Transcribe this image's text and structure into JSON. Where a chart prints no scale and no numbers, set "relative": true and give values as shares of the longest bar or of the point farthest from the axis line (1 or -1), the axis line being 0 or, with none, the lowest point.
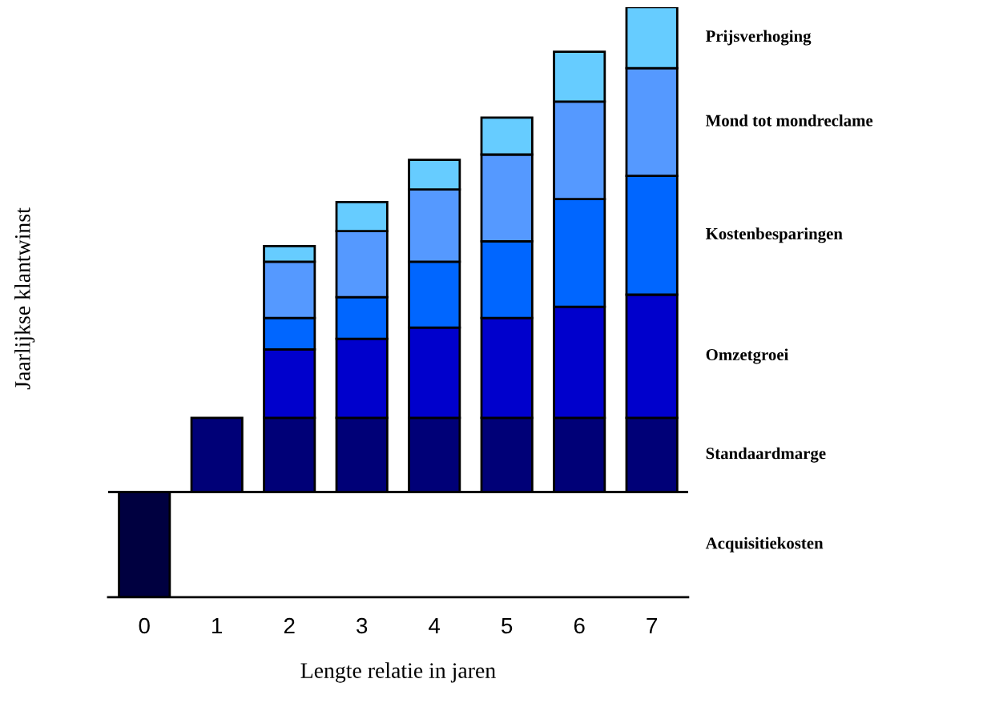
{
  "chart_data": {
    "type": "bar",
    "stacked": true,
    "relative": true,
    "xlabel": "Lengte relatie in jaren",
    "ylabel": "Jaarlijkse klantwinst",
    "categories": [
      "0",
      "1",
      "2",
      "3",
      "4",
      "5",
      "6",
      "7"
    ],
    "series": [
      {
        "name": "Acquisitiekosten",
        "color": "#000040",
        "values": [
          -0.217,
          null,
          null,
          null,
          null,
          null,
          null,
          null
        ]
      },
      {
        "name": "Standaardmarge",
        "color": "#000077",
        "values": [
          null,
          0.153,
          0.153,
          0.153,
          0.153,
          0.153,
          0.153,
          0.153
        ]
      },
      {
        "name": "Omzetgroei",
        "color": "#0000cc",
        "values": [
          null,
          null,
          0.141,
          0.163,
          0.186,
          0.206,
          0.229,
          0.254
        ]
      },
      {
        "name": "Kostenbesparingen",
        "color": "#0066ff",
        "values": [
          null,
          null,
          0.065,
          0.086,
          0.136,
          0.158,
          0.222,
          0.245
        ]
      },
      {
        "name": "Mond tot mondreclame",
        "color": "#5599ff",
        "values": [
          null,
          null,
          0.116,
          0.136,
          0.149,
          0.179,
          0.201,
          0.222
        ]
      },
      {
        "name": "Prijsverhoging",
        "color": "#66ccff",
        "values": [
          null,
          null,
          0.032,
          0.06,
          0.061,
          0.076,
          0.103,
          0.126
        ]
      }
    ]
  }
}
